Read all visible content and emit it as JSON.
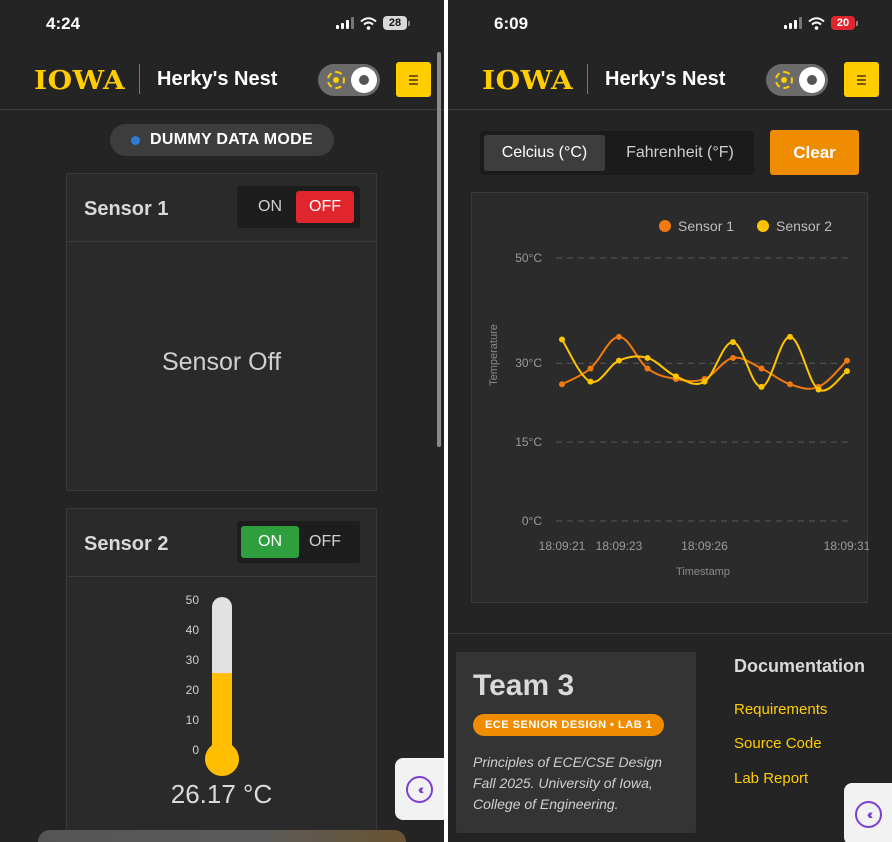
{
  "left_screen": {
    "status": {
      "time": "4:24",
      "battery": "28"
    },
    "header": {
      "logo": "IOWA",
      "title": "Herky's Nest"
    },
    "mode_badge": "DUMMY DATA MODE",
    "sensor1": {
      "title": "Sensor 1",
      "on_label": "ON",
      "off_label": "OFF",
      "state": "off",
      "off_message": "Sensor Off"
    },
    "sensor2": {
      "title": "Sensor 2",
      "on_label": "ON",
      "off_label": "OFF",
      "state": "on",
      "scale": [
        "50",
        "40",
        "30",
        "20",
        "10",
        "0"
      ],
      "level": 26.17,
      "reading": "26.17 °C"
    },
    "collapse_icon": "double-chevron-left-icon"
  },
  "right_screen": {
    "status": {
      "time": "6:09",
      "battery": "20"
    },
    "header": {
      "logo": "IOWA",
      "title": "Herky's Nest"
    },
    "units": {
      "celsius": "Celcius (°C)",
      "fahrenheit": "Fahrenheit (°F)",
      "selected": "celsius"
    },
    "clear_button": "Clear",
    "footer": {
      "team": "Team 3",
      "badge": "ECE SENIOR DESIGN • LAB 1",
      "description_lines": [
        "Principles of ECE/CSE Design",
        "Fall 2025. University of Iowa,",
        "College of Engineering."
      ],
      "doc_title": "Documentation",
      "links": [
        "Requirements",
        "Source Code",
        "Lab Report"
      ]
    },
    "collapse_icon": "double-chevron-left-icon"
  },
  "colors": {
    "iowa_gold": "#FFCD00",
    "sensor1": "#F07A10",
    "sensor2": "#FFC400",
    "off_red": "#E0262C",
    "on_green": "#2E9E3E",
    "accent_orange": "#F08C00"
  },
  "chart_data": {
    "type": "line",
    "title": "",
    "xlabel": "Timestamp",
    "ylabel": "Temperature",
    "x": [
      0,
      1,
      2,
      3,
      4,
      5,
      6,
      7,
      8,
      9,
      10
    ],
    "x_tick_labels": [
      {
        "at": 0,
        "label": "18:09:21"
      },
      {
        "at": 2,
        "label": "18:09:23"
      },
      {
        "at": 5,
        "label": "18:09:26"
      },
      {
        "at": 10,
        "label": "18:09:31"
      }
    ],
    "y_ticks": [
      {
        "value": 0,
        "label": "0°C"
      },
      {
        "value": 15,
        "label": "15°C"
      },
      {
        "value": 30,
        "label": "30°C"
      },
      {
        "value": 50,
        "label": "50°C"
      }
    ],
    "ylim": [
      0,
      50
    ],
    "grid": true,
    "legend": "top-right",
    "series": [
      {
        "name": "Sensor 1",
        "color": "#F07A10",
        "values": [
          26.0,
          29.0,
          35.0,
          29.0,
          27.0,
          27.0,
          31.0,
          29.0,
          26.0,
          25.5,
          30.5
        ]
      },
      {
        "name": "Sensor 2",
        "color": "#FFC400",
        "values": [
          34.5,
          26.5,
          30.5,
          31.0,
          27.5,
          26.5,
          34.0,
          25.5,
          35.0,
          25.0,
          28.5
        ]
      }
    ]
  }
}
